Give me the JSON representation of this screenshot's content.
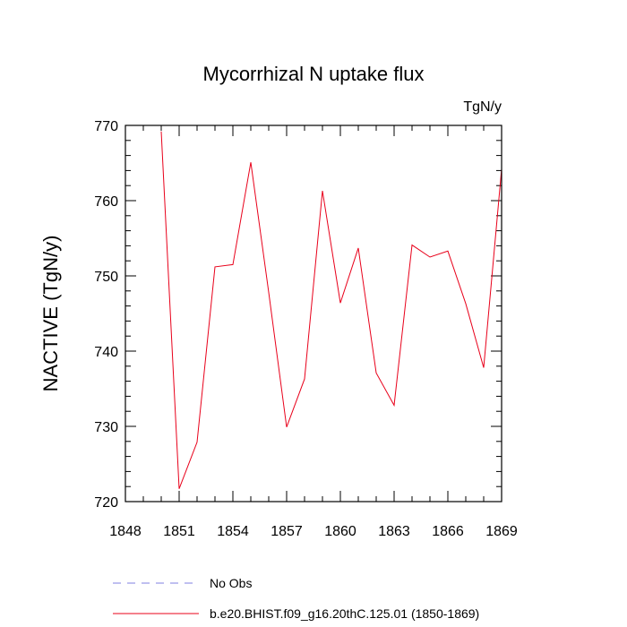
{
  "chart_data": {
    "type": "line",
    "title": "Mycorrhizal N uptake flux",
    "units": "TgN/y",
    "xlabel": "",
    "ylabel": "NACTIVE  (TgN/y)",
    "xlim": [
      1848,
      1869
    ],
    "ylim": [
      720,
      770
    ],
    "x_ticks": [
      1848,
      1851,
      1854,
      1857,
      1860,
      1863,
      1866,
      1869
    ],
    "y_ticks": [
      720,
      730,
      740,
      750,
      760,
      770
    ],
    "grid": false,
    "legend_position": "bottom",
    "series": [
      {
        "name": "b.e20.BHIST.f09_g16.20thC.125.01 (1850-1869)",
        "color": "#e8001a",
        "style": "solid",
        "x": [
          1850,
          1851,
          1852,
          1853,
          1854,
          1855,
          1856,
          1857,
          1858,
          1859,
          1860,
          1861,
          1862,
          1863,
          1864,
          1865,
          1866,
          1867,
          1868,
          1869
        ],
        "y": [
          769.2,
          721.7,
          727.9,
          751.2,
          751.5,
          765.1,
          747.8,
          729.9,
          736.3,
          761.3,
          746.4,
          753.7,
          737.1,
          732.8,
          754.1,
          752.5,
          753.3,
          746.3,
          737.8,
          764.2
        ]
      }
    ],
    "legend": [
      {
        "label": "No Obs",
        "color": "#7f7fe0",
        "style": "dashed"
      },
      {
        "label": "b.e20.BHIST.f09_g16.20thC.125.01 (1850-1869)",
        "color": "#e8001a",
        "style": "solid"
      }
    ]
  }
}
